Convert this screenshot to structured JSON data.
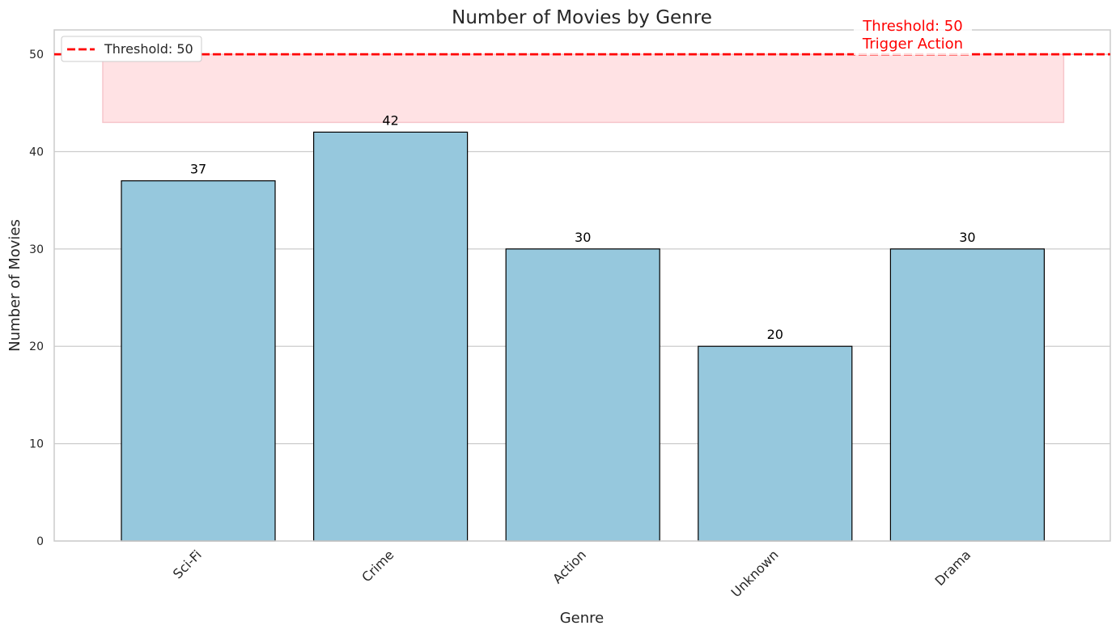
{
  "chart_data": {
    "type": "bar",
    "title": "Number of Movies by Genre",
    "xlabel": "Genre",
    "ylabel": "Number of Movies",
    "categories": [
      "Sci-Fi",
      "Crime",
      "Action",
      "Unknown",
      "Drama"
    ],
    "values": [
      37,
      42,
      30,
      20,
      30
    ],
    "value_labels": [
      "37",
      "42",
      "30",
      "20",
      "30"
    ],
    "ylim": [
      0,
      52.5
    ],
    "yticks": [
      0,
      10,
      20,
      30,
      40,
      50
    ],
    "ytick_labels": [
      "0",
      "10",
      "20",
      "30",
      "40",
      "50"
    ],
    "grid": "horizontal",
    "bar_color": "#96c8dd",
    "bar_edge_color": "#000000",
    "threshold": {
      "value": 50,
      "color": "#ff0000",
      "style": "dashed",
      "legend_label": "Threshold: 50",
      "annotation_lines": [
        "Threshold: 50",
        "Trigger Action"
      ]
    },
    "highlight_band": {
      "ymin": 43,
      "ymax": 50,
      "color": "#ffe2e4"
    },
    "legend_position": "top-left"
  }
}
